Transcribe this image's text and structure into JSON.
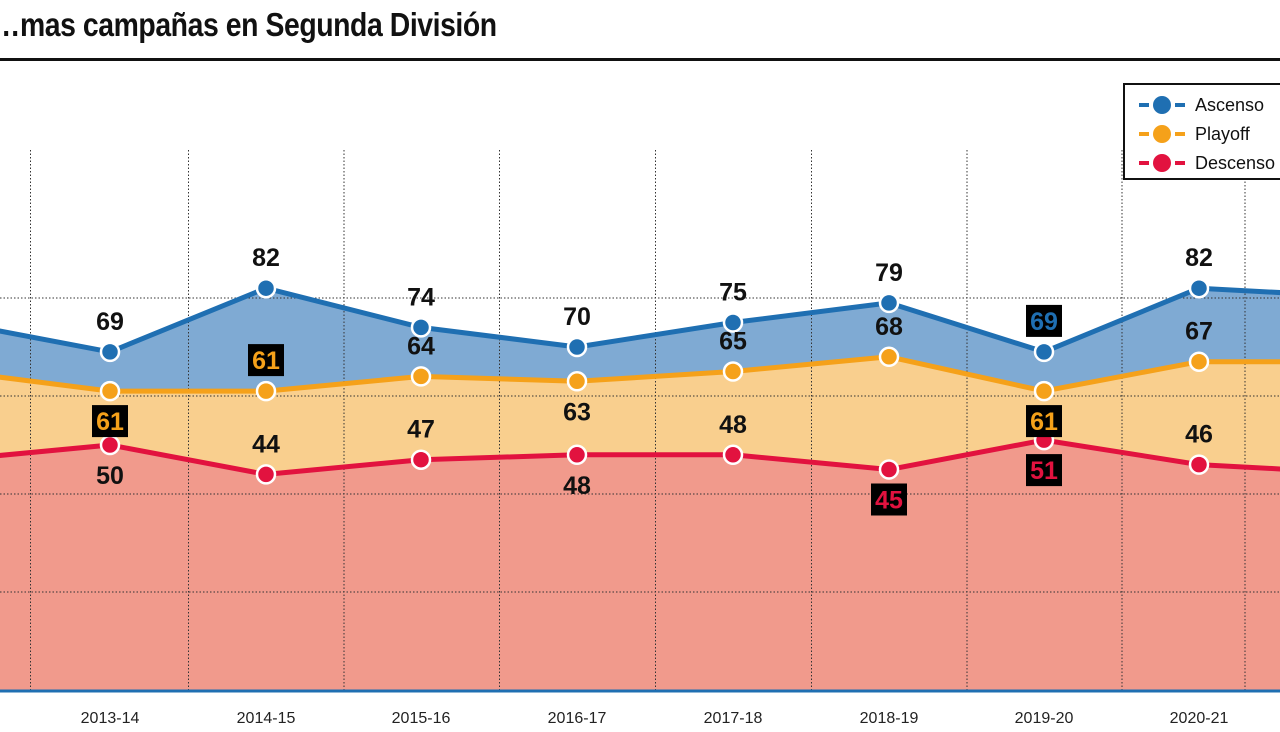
{
  "title": "…mas campañas en Segunda División",
  "legend": [
    {
      "label": "Ascenso",
      "color": "#1f6fb2"
    },
    {
      "label": "Playoff",
      "color": "#f5a11a"
    },
    {
      "label": "Descenso",
      "color": "#e2123f"
    }
  ],
  "colors": {
    "ascenso_fill": "#7faad3",
    "playoff_fill": "#f9cf8e",
    "descenso_fill": "#f19a8c",
    "grid": "#333333",
    "axis": "#1f6fb2",
    "highlight_box": "#000000"
  },
  "chart_data": {
    "type": "area",
    "title": "…mas campañas en Segunda División",
    "xlabel": "",
    "ylabel": "",
    "grid": true,
    "legend_position": "top-right",
    "categories": [
      "",
      "2013-14",
      "2014-15",
      "2015-16",
      "2016-17",
      "2017-18",
      "2018-19",
      "2019-20",
      "2020-21",
      ""
    ],
    "ylim": [
      0,
      100
    ],
    "series": [
      {
        "name": "Ascenso",
        "color": "#1f6fb2",
        "values": [
          75,
          69,
          82,
          74,
          70,
          75,
          79,
          69,
          82,
          81
        ],
        "labels": [
          null,
          "69",
          "82",
          "74",
          "70",
          "75",
          "79",
          "69",
          "82",
          null
        ],
        "label_pos": [
          null,
          "above",
          "above",
          "above",
          "above",
          "above",
          "above",
          "above",
          "above",
          null
        ],
        "highlight": [
          null,
          false,
          false,
          false,
          false,
          false,
          false,
          true,
          false,
          null
        ]
      },
      {
        "name": "Playoff",
        "color": "#f5a11a",
        "values": [
          65,
          61,
          61,
          64,
          63,
          65,
          68,
          61,
          67,
          67
        ],
        "labels": [
          null,
          "61",
          "61",
          "64",
          "63",
          "65",
          "68",
          "61",
          "67",
          null
        ],
        "label_pos": [
          null,
          "below",
          "above",
          "above",
          "below",
          "above",
          "above",
          "below",
          "above",
          null
        ],
        "highlight": [
          null,
          true,
          true,
          false,
          false,
          false,
          false,
          true,
          false,
          null
        ]
      },
      {
        "name": "Descenso",
        "color": "#e2123f",
        "values": [
          47,
          50,
          44,
          47,
          48,
          48,
          45,
          51,
          46,
          45
        ],
        "labels": [
          null,
          "50",
          "44",
          "47",
          "48",
          "48",
          "45",
          "51",
          "46",
          null
        ],
        "label_pos": [
          null,
          "below",
          "above",
          "above",
          "below",
          "above",
          "below",
          "below",
          "above",
          null
        ],
        "highlight": [
          null,
          false,
          false,
          false,
          false,
          false,
          true,
          true,
          false,
          null
        ]
      }
    ]
  }
}
